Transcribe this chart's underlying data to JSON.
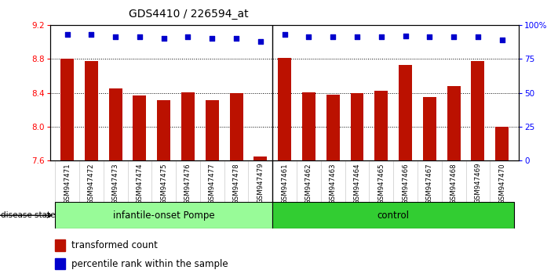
{
  "title": "GDS4410 / 226594_at",
  "samples": [
    "GSM947471",
    "GSM947472",
    "GSM947473",
    "GSM947474",
    "GSM947475",
    "GSM947476",
    "GSM947477",
    "GSM947478",
    "GSM947479",
    "GSM947461",
    "GSM947462",
    "GSM947463",
    "GSM947464",
    "GSM947465",
    "GSM947466",
    "GSM947467",
    "GSM947468",
    "GSM947469",
    "GSM947470"
  ],
  "bar_values": [
    8.8,
    8.77,
    8.45,
    8.37,
    8.31,
    8.41,
    8.31,
    8.4,
    7.65,
    8.81,
    8.41,
    8.38,
    8.4,
    8.42,
    8.73,
    8.35,
    8.48,
    8.77,
    8.0
  ],
  "percentile_values": [
    93,
    93,
    91,
    91,
    90,
    91,
    90,
    90,
    88,
    93,
    91,
    91,
    91,
    91,
    92,
    91,
    91,
    91,
    89
  ],
  "group1_count": 9,
  "group2_count": 10,
  "group1_label": "infantile-onset Pompe",
  "group2_label": "control",
  "group1_color": "#98FB98",
  "group2_color": "#32CD32",
  "bar_color": "#BB1100",
  "dot_color": "#0000CC",
  "ylim_left": [
    7.6,
    9.2
  ],
  "ylim_right": [
    0,
    100
  ],
  "yticks_left": [
    7.6,
    8.0,
    8.4,
    8.8,
    9.2
  ],
  "yticks_right": [
    0,
    25,
    50,
    75,
    100
  ],
  "ytick_labels_right": [
    "0",
    "25",
    "50",
    "75",
    "100%"
  ],
  "grid_values": [
    8.0,
    8.4,
    8.8
  ],
  "bar_width": 0.55,
  "disease_state_label": "disease state",
  "legend_bar_label": "transformed count",
  "legend_dot_label": "percentile rank within the sample",
  "title_fontsize": 10,
  "tick_fontsize": 7.5,
  "sample_fontsize": 6.2
}
